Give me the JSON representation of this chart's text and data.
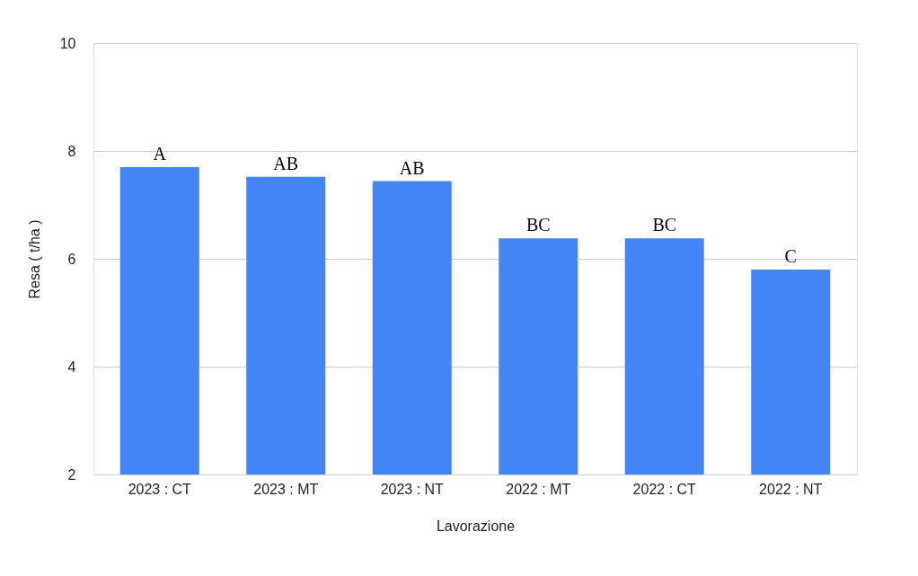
{
  "chart_data": {
    "type": "bar",
    "xlabel": "Lavorazione",
    "ylabel": "Resa ( t/ha )",
    "categories": [
      "2023 : CT",
      "2023 : MT",
      "2023 : NT",
      "2022 : MT",
      "2022 : CT",
      "2022 : NT"
    ],
    "series": [
      {
        "color": "#4285f4",
        "values": [
          7.7,
          7.52,
          7.44,
          6.38,
          6.38,
          5.8
        ]
      }
    ],
    "ylim": [
      2,
      10
    ],
    "yticks": [
      2,
      4,
      6,
      8,
      10
    ],
    "grid": "y",
    "annotations": [
      {
        "text": "A",
        "x": "2023 : CT",
        "y": 7.7
      },
      {
        "text": "AB",
        "x": "2023 : MT",
        "y": 7.52
      },
      {
        "text": "AB",
        "x": "2023 : NT",
        "y": 7.44
      },
      {
        "text": "BC",
        "x": "2022 : MT",
        "y": 6.38
      },
      {
        "text": "BC",
        "x": "2022 : CT",
        "y": 6.38
      },
      {
        "text": "C",
        "x": "2022 : NT",
        "y": 5.8
      }
    ]
  }
}
